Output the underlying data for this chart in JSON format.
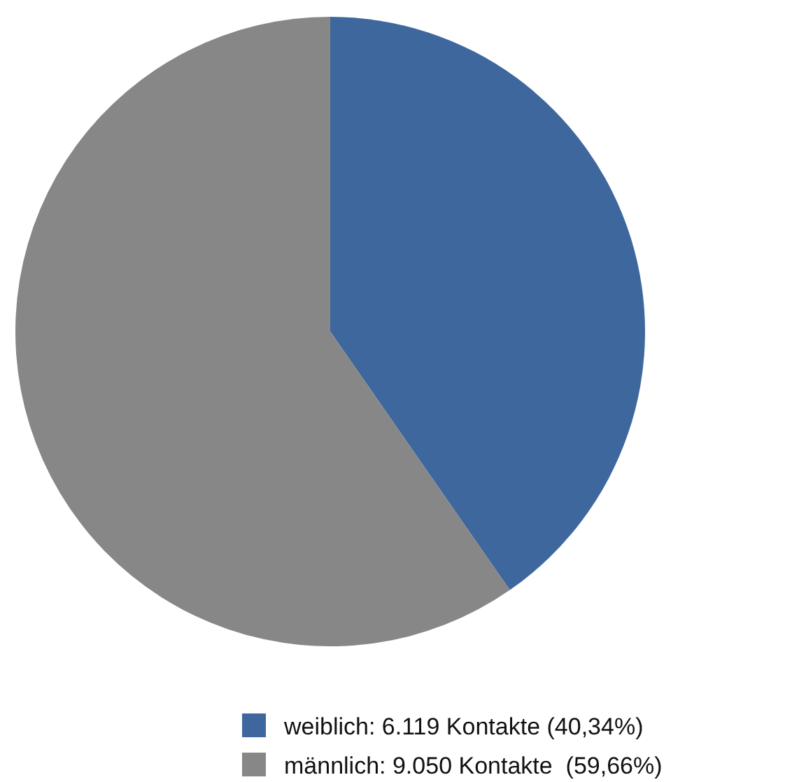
{
  "chart_data": {
    "type": "pie",
    "categories": [
      "weiblich: 6.119 Kontakte (40,34%)",
      "männlich: 9.050 Kontakte  (59,66%)"
    ],
    "values": [
      6119,
      9050
    ],
    "colors": [
      "#3e689d",
      "#878787"
    ],
    "legend": "bottom"
  }
}
